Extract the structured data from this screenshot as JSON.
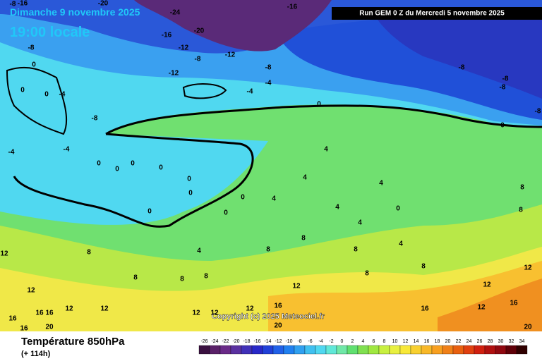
{
  "header": {
    "title": "Dimanche 9 novembre 2025",
    "subtitle": "19:00 locale",
    "run": "Run GEM 0 Z du Mercredi 5 novembre 2025"
  },
  "copyright": "Copyright (c) 2025 Meteociel.fr",
  "footer": {
    "title": "Température 850hPa",
    "lead": "(+ 114h)"
  },
  "contour_labels": [
    "-8",
    "-16",
    "-20",
    "-24",
    "-16",
    "-20",
    "-16",
    "-8",
    "-12",
    "-8",
    "-12",
    "-8",
    "-12",
    "-4",
    "-4",
    "-8",
    "-8",
    "-8",
    "-8",
    "0",
    "0",
    "-8",
    "-4",
    "0",
    "0",
    "0",
    "-4",
    "-4",
    "0",
    "0",
    "0",
    "0",
    "0",
    "0",
    "0",
    "0",
    "0",
    "4",
    "4",
    "4",
    "4",
    "4",
    "0",
    "4",
    "4",
    "8",
    "8",
    "8",
    "8",
    "4",
    "8",
    "8",
    "8",
    "12",
    "8",
    "8",
    "8",
    "8",
    "12",
    "12",
    "12",
    "16",
    "16",
    "12",
    "12",
    "16",
    "12",
    "12",
    "16",
    "12",
    "12",
    "16",
    "16",
    "16",
    "20",
    "20",
    "20",
    "12"
  ],
  "colorbar": {
    "ticks": [
      -26,
      -24,
      -22,
      -20,
      -18,
      -16,
      -14,
      -12,
      -10,
      -8,
      -6,
      -4,
      -2,
      0,
      2,
      4,
      6,
      8,
      10,
      12,
      14,
      16,
      18,
      20,
      22,
      24,
      26,
      28,
      30,
      32,
      34
    ],
    "colors": [
      "#3a1040",
      "#5a2068",
      "#6a2a88",
      "#5a30a0",
      "#4030b8",
      "#2828c8",
      "#2040d8",
      "#2060e8",
      "#2080f0",
      "#30a0f0",
      "#40c0f0",
      "#50d8f0",
      "#60e8d8",
      "#70e8a8",
      "#60e070",
      "#80e050",
      "#a0e840",
      "#c8f040",
      "#e8f040",
      "#f8e838",
      "#f8d030",
      "#f8b828",
      "#f8a020",
      "#f08018",
      "#e86010",
      "#e04010",
      "#d02010",
      "#b01010",
      "#900810",
      "#600008",
      "#300000"
    ]
  }
}
